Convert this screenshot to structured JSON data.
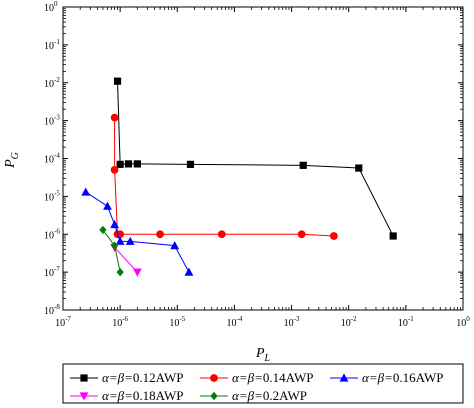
{
  "chart_data": {
    "type": "scatter",
    "xlabel": "P",
    "xlabel_sub": "L",
    "ylabel": "P",
    "ylabel_sub": "G",
    "xscale": "log",
    "yscale": "log",
    "xlim": [
      1e-07,
      1
    ],
    "ylim": [
      1e-08,
      1
    ],
    "xticks": [
      {
        "value": 1e-07,
        "base": "10",
        "exp": "-7"
      },
      {
        "value": 1e-06,
        "base": "10",
        "exp": "-6"
      },
      {
        "value": 1e-05,
        "base": "10",
        "exp": "-5"
      },
      {
        "value": 0.0001,
        "base": "10",
        "exp": "-4"
      },
      {
        "value": 0.001,
        "base": "10",
        "exp": "-3"
      },
      {
        "value": 0.01,
        "base": "10",
        "exp": "-2"
      },
      {
        "value": 0.1,
        "base": "10",
        "exp": "-1"
      },
      {
        "value": 1,
        "base": "10",
        "exp": "0"
      }
    ],
    "yticks": [
      {
        "value": 1e-08,
        "base": "10",
        "exp": "-8"
      },
      {
        "value": 1e-07,
        "base": "10",
        "exp": "-7"
      },
      {
        "value": 1e-06,
        "base": "10",
        "exp": "-6"
      },
      {
        "value": 1e-05,
        "base": "10",
        "exp": "-5"
      },
      {
        "value": 0.0001,
        "base": "10",
        "exp": "-4"
      },
      {
        "value": 0.001,
        "base": "10",
        "exp": "-3"
      },
      {
        "value": 0.01,
        "base": "10",
        "exp": "-2"
      },
      {
        "value": 0.1,
        "base": "10",
        "exp": "-1"
      },
      {
        "value": 1,
        "base": "10",
        "exp": "0"
      }
    ],
    "grid": false,
    "legend_position": "bottom",
    "series": [
      {
        "name": "α=β=0.12AWP",
        "greek": "α=β=",
        "value": "0.12AWP",
        "color": "#000000",
        "marker": "square",
        "points": [
          [
            9e-07,
            0.011
          ],
          [
            1e-06,
            7e-05
          ],
          [
            1.4e-06,
            7.2e-05
          ],
          [
            2e-06,
            7.2e-05
          ],
          [
            1.7e-05,
            7e-05
          ],
          [
            0.0016,
            6.6e-05
          ],
          [
            0.015,
            5.6e-05
          ],
          [
            0.06,
            9e-07
          ]
        ]
      },
      {
        "name": "α=β=0.14AWP",
        "greek": "α=β=",
        "value": "0.14AWP",
        "color": "#ff0000",
        "marker": "circle",
        "points": [
          [
            8e-07,
            0.0012
          ],
          [
            8e-07,
            5e-05
          ],
          [
            9e-07,
            1e-06
          ],
          [
            1e-06,
            1e-06
          ],
          [
            5e-06,
            1e-06
          ],
          [
            6e-05,
            1e-06
          ],
          [
            0.0015,
            1e-06
          ],
          [
            0.0055,
            9e-07
          ]
        ]
      },
      {
        "name": "α=β=0.16AWP",
        "greek": "α=β=",
        "value": "0.16AWP",
        "color": "#0000ff",
        "marker": "triangle-up",
        "points": [
          [
            2.5e-07,
            1.3e-05
          ],
          [
            6e-07,
            5.5e-06
          ],
          [
            8e-07,
            1.8e-06
          ],
          [
            1e-06,
            6.5e-07
          ],
          [
            1.5e-06,
            6.5e-07
          ],
          [
            9e-06,
            5e-07
          ],
          [
            1.6e-05,
            1e-07
          ]
        ]
      },
      {
        "name": "α=β=0.18AWP",
        "greek": "α=β=",
        "value": "0.18AWP",
        "color": "#ff00ff",
        "marker": "triangle-down",
        "points": [
          [
            8e-07,
            4.5e-07
          ],
          [
            2e-06,
            1e-07
          ]
        ]
      },
      {
        "name": "α=β=0.2AWP",
        "greek": "α=β=",
        "value": "0.2AWP",
        "color": "#008000",
        "marker": "diamond",
        "points": [
          [
            5e-07,
            1.3e-06
          ],
          [
            8e-07,
            5e-07
          ],
          [
            1e-06,
            1e-07
          ]
        ]
      }
    ]
  }
}
